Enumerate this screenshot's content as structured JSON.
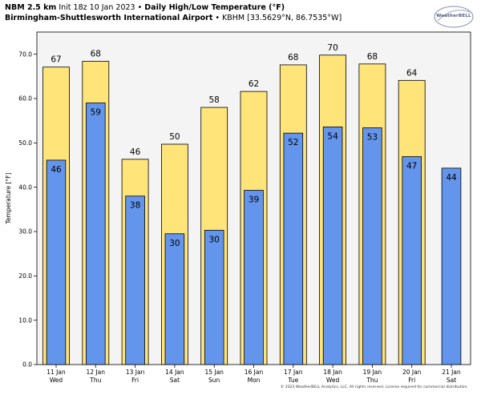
{
  "header": {
    "model": "NBM 2.5 km",
    "init": "Init 18z 10 Jan 2023",
    "sep": "•",
    "product": "Daily High/Low Temperature (°F)",
    "station": "Birmingham-Shuttlesworth International Airport",
    "station_detail": "• KBHM [33.5629°N, 86.7535°W]"
  },
  "logo": {
    "text": "WeatherBELL"
  },
  "credit": "© 2023 WeatherBELL Analytics, LLC. All rights reserved. License required for commercial distribution.",
  "colors": {
    "high": "#FFE47A",
    "low": "#6495ED",
    "plot_bg": "#F4F4F4",
    "edge": "#000000"
  },
  "chart_data": {
    "type": "bar",
    "ylabel": "Temperature [°F]",
    "ylim": [
      0,
      75
    ],
    "yticks": [
      "0.0",
      "10.0",
      "20.0",
      "30.0",
      "40.0",
      "50.0",
      "60.0",
      "70.0"
    ],
    "grid": false,
    "categories": [
      {
        "date": "11 Jan",
        "day": "Wed"
      },
      {
        "date": "12 Jan",
        "day": "Thu"
      },
      {
        "date": "13 Jan",
        "day": "Fri"
      },
      {
        "date": "14 Jan",
        "day": "Sat"
      },
      {
        "date": "15 Jan",
        "day": "Sun"
      },
      {
        "date": "16 Jan",
        "day": "Mon"
      },
      {
        "date": "17 Jan",
        "day": "Tue"
      },
      {
        "date": "18 Jan",
        "day": "Wed"
      },
      {
        "date": "19 Jan",
        "day": "Thu"
      },
      {
        "date": "20 Jan",
        "day": "Fri"
      },
      {
        "date": "21 Jan",
        "day": "Sat"
      }
    ],
    "high": {
      "values": [
        67.1,
        68.4,
        46.3,
        49.7,
        58.0,
        61.6,
        67.6,
        69.8,
        67.8,
        64.1,
        null
      ],
      "labels": [
        "67",
        "68",
        "46",
        "50",
        "58",
        "62",
        "68",
        "70",
        "68",
        "64",
        ""
      ]
    },
    "low": {
      "values": [
        46.1,
        59.0,
        38.0,
        29.5,
        30.3,
        39.3,
        52.2,
        53.6,
        53.4,
        46.9,
        44.3
      ],
      "labels": [
        "46",
        "59",
        "38",
        "30",
        "30",
        "39",
        "52",
        "54",
        "53",
        "47",
        "44"
      ]
    }
  }
}
